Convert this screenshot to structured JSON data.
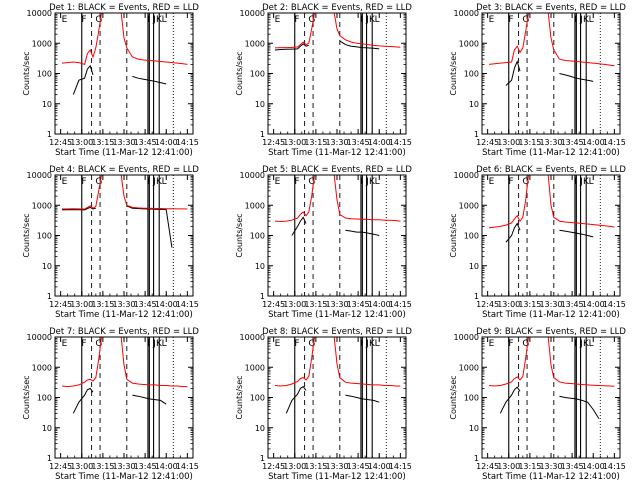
{
  "figure": {
    "xlabel": "Start Time (11-Mar-12 12:41:00)",
    "ylabel": "Counts/sec",
    "xticks": [
      "12:45",
      "13:00",
      "13:15",
      "13:30",
      "13:45",
      "14:00",
      "14:15"
    ],
    "yticks": [
      "1",
      "10",
      "100",
      "1000",
      "10000"
    ],
    "series_colors": {
      "events": "#000000",
      "lld": "#ff0000"
    }
  },
  "chart_data": [
    {
      "type": "line",
      "title": "Det 1: BLACK = Events, RED = LLD",
      "det": 1,
      "x": [
        "12:46",
        "12:50",
        "12:54",
        "12:58",
        "13:02",
        "13:04",
        "13:06",
        "13:08",
        "13:10",
        "13:12",
        "13:14",
        "13:16",
        "13:20",
        "13:24",
        "13:28",
        "13:30",
        "13:32",
        "13:36",
        "13:40",
        "13:44",
        "13:48",
        "13:52",
        "13:56",
        "14:00",
        "14:04",
        "14:08",
        "14:12",
        "14:15"
      ],
      "ylim": [
        1,
        10000
      ],
      "ylog": true,
      "series": [
        {
          "key": "lld",
          "values": [
            220,
            230,
            240,
            230,
            200,
            450,
            600,
            350,
            700,
            2500,
            10000,
            10000,
            10000,
            10000,
            10000,
            1500,
            700,
            350,
            300,
            280,
            270,
            260,
            250,
            240,
            230,
            220,
            210,
            200
          ]
        },
        {
          "key": "events",
          "values": [
            null,
            null,
            20,
            60,
            70,
            140,
            180,
            90,
            null,
            null,
            null,
            null,
            null,
            null,
            null,
            null,
            null,
            80,
            70,
            65,
            60,
            55,
            50,
            45,
            null,
            null,
            null,
            null
          ]
        }
      ],
      "labels": [
        "E",
        "F",
        "G",
        "I",
        "J",
        "K",
        "L"
      ]
    },
    {
      "type": "line",
      "title": "Det 2: BLACK = Events, RED = LLD",
      "det": 2,
      "x": [
        "12:46",
        "12:50",
        "12:54",
        "12:58",
        "13:02",
        "13:04",
        "13:06",
        "13:08",
        "13:10",
        "13:12",
        "13:14",
        "13:16",
        "13:20",
        "13:24",
        "13:28",
        "13:30",
        "13:32",
        "13:36",
        "13:40",
        "13:44",
        "13:48",
        "13:52",
        "13:56",
        "14:00",
        "14:04",
        "14:08",
        "14:12",
        "14:15"
      ],
      "ylim": [
        1,
        10000
      ],
      "ylog": true,
      "series": [
        {
          "key": "lld",
          "values": [
            700,
            720,
            720,
            730,
            750,
            900,
            1100,
            900,
            1000,
            3000,
            10000,
            10000,
            10000,
            10000,
            10000,
            3000,
            1800,
            1300,
            1100,
            1000,
            950,
            900,
            850,
            820,
            800,
            780,
            760,
            740
          ]
        },
        {
          "key": "events",
          "values": [
            600,
            620,
            630,
            640,
            650,
            800,
            950,
            800,
            850,
            null,
            null,
            null,
            null,
            null,
            null,
            null,
            1200,
            900,
            800,
            760,
            720,
            700,
            680,
            650,
            null,
            null,
            null,
            null
          ]
        }
      ],
      "labels": [
        "E",
        "F",
        "G",
        "I",
        "J",
        "K",
        "L"
      ]
    },
    {
      "type": "line",
      "title": "Det 3: BLACK = Events, RED = LLD",
      "det": 3,
      "x": [
        "12:46",
        "12:50",
        "12:54",
        "12:58",
        "13:02",
        "13:04",
        "13:06",
        "13:08",
        "13:10",
        "13:12",
        "13:14",
        "13:16",
        "13:20",
        "13:24",
        "13:28",
        "13:30",
        "13:32",
        "13:36",
        "13:40",
        "13:44",
        "13:48",
        "13:52",
        "13:56",
        "14:00",
        "14:04",
        "14:08",
        "14:12",
        "14:15"
      ],
      "ylim": [
        1,
        10000
      ],
      "ylog": true,
      "series": [
        {
          "key": "lld",
          "values": [
            200,
            210,
            220,
            230,
            240,
            600,
            800,
            500,
            700,
            2500,
            10000,
            10000,
            10000,
            10000,
            10000,
            1500,
            600,
            300,
            270,
            260,
            250,
            240,
            230,
            220,
            210,
            200,
            190,
            180
          ]
        },
        {
          "key": "events",
          "values": [
            null,
            null,
            null,
            40,
            60,
            150,
            250,
            120,
            null,
            null,
            null,
            null,
            null,
            null,
            null,
            null,
            null,
            100,
            90,
            80,
            70,
            65,
            60,
            55,
            null,
            null,
            null,
            null
          ]
        }
      ],
      "labels": [
        "E",
        "F",
        "G",
        "I",
        "J",
        "K",
        "L"
      ]
    },
    {
      "type": "line",
      "title": "Det 4: BLACK = Events, RED = LLD",
      "det": 4,
      "x": [
        "12:46",
        "12:50",
        "12:54",
        "12:58",
        "13:02",
        "13:04",
        "13:06",
        "13:08",
        "13:10",
        "13:12",
        "13:14",
        "13:16",
        "13:20",
        "13:24",
        "13:28",
        "13:30",
        "13:32",
        "13:36",
        "13:40",
        "13:44",
        "13:48",
        "13:52",
        "13:56",
        "14:00",
        "14:04",
        "14:08",
        "14:12",
        "14:15"
      ],
      "ylim": [
        1,
        10000
      ],
      "ylog": true,
      "series": [
        {
          "key": "lld",
          "values": [
            750,
            760,
            770,
            760,
            750,
            850,
            950,
            800,
            900,
            3000,
            10000,
            10000,
            10000,
            10000,
            10000,
            2000,
            1000,
            850,
            820,
            800,
            790,
            780,
            780,
            770,
            770,
            760,
            760,
            750
          ]
        },
        {
          "key": "events",
          "values": [
            700,
            710,
            720,
            710,
            700,
            780,
            850,
            750,
            800,
            null,
            null,
            null,
            null,
            null,
            null,
            null,
            950,
            800,
            780,
            760,
            750,
            740,
            730,
            720,
            40,
            null,
            null,
            null
          ]
        }
      ],
      "labels": [
        "E",
        "F",
        "G",
        "I",
        "J",
        "K",
        "L"
      ]
    },
    {
      "type": "line",
      "title": "Det 5: BLACK = Events, RED = LLD",
      "det": 5,
      "x": [
        "12:46",
        "12:50",
        "12:54",
        "12:58",
        "13:02",
        "13:04",
        "13:06",
        "13:08",
        "13:10",
        "13:12",
        "13:14",
        "13:16",
        "13:20",
        "13:24",
        "13:28",
        "13:30",
        "13:32",
        "13:36",
        "13:40",
        "13:44",
        "13:48",
        "13:52",
        "13:56",
        "14:00",
        "14:04",
        "14:08",
        "14:12",
        "14:15"
      ],
      "ylim": [
        1,
        10000
      ],
      "ylog": true,
      "series": [
        {
          "key": "lld",
          "values": [
            300,
            290,
            300,
            320,
            380,
            500,
            600,
            450,
            600,
            2000,
            10000,
            10000,
            10000,
            10000,
            10000,
            1500,
            500,
            380,
            360,
            350,
            340,
            340,
            330,
            330,
            320,
            320,
            310,
            300
          ]
        },
        {
          "key": "events",
          "values": [
            null,
            null,
            null,
            100,
            200,
            300,
            400,
            250,
            null,
            null,
            null,
            null,
            null,
            null,
            null,
            null,
            null,
            150,
            140,
            130,
            130,
            120,
            110,
            100,
            null,
            null,
            null,
            null
          ]
        }
      ],
      "labels": [
        "E",
        "F",
        "G",
        "I",
        "J",
        "K",
        "L"
      ]
    },
    {
      "type": "line",
      "title": "Det 6: BLACK = Events, RED = LLD",
      "det": 6,
      "x": [
        "12:46",
        "12:50",
        "12:54",
        "12:58",
        "13:02",
        "13:04",
        "13:06",
        "13:08",
        "13:10",
        "13:12",
        "13:14",
        "13:16",
        "13:20",
        "13:24",
        "13:28",
        "13:30",
        "13:32",
        "13:36",
        "13:40",
        "13:44",
        "13:48",
        "13:52",
        "13:56",
        "14:00",
        "14:04",
        "14:08",
        "14:12",
        "14:15"
      ],
      "ylim": [
        1,
        10000
      ],
      "ylog": true,
      "series": [
        {
          "key": "lld",
          "values": [
            180,
            190,
            200,
            220,
            260,
            350,
            450,
            300,
            400,
            1500,
            10000,
            10000,
            10000,
            10000,
            10000,
            1000,
            400,
            300,
            280,
            270,
            260,
            250,
            240,
            230,
            220,
            210,
            200,
            190
          ]
        },
        {
          "key": "events",
          "values": [
            null,
            null,
            null,
            60,
            100,
            180,
            250,
            150,
            null,
            null,
            null,
            null,
            null,
            null,
            null,
            null,
            null,
            150,
            140,
            130,
            120,
            110,
            100,
            90,
            null,
            null,
            null,
            null
          ]
        }
      ],
      "labels": [
        "E",
        "F",
        "G",
        "I",
        "J",
        "K",
        "L"
      ]
    },
    {
      "type": "line",
      "title": "Det 7: BLACK = Events, RED = LLD",
      "det": 7,
      "x": [
        "12:46",
        "12:50",
        "12:54",
        "12:58",
        "13:02",
        "13:04",
        "13:06",
        "13:08",
        "13:10",
        "13:12",
        "13:14",
        "13:16",
        "13:20",
        "13:24",
        "13:28",
        "13:30",
        "13:32",
        "13:36",
        "13:40",
        "13:44",
        "13:48",
        "13:52",
        "13:56",
        "14:00",
        "14:04",
        "14:08",
        "14:12",
        "14:15"
      ],
      "ylim": [
        1,
        10000
      ],
      "ylog": true,
      "series": [
        {
          "key": "lld",
          "values": [
            240,
            230,
            240,
            260,
            320,
            380,
            400,
            350,
            450,
            1800,
            10000,
            10000,
            10000,
            10000,
            10000,
            1200,
            400,
            300,
            280,
            270,
            260,
            260,
            250,
            250,
            240,
            240,
            230,
            230
          ]
        },
        {
          "key": "events",
          "values": [
            null,
            null,
            30,
            70,
            120,
            180,
            200,
            150,
            null,
            null,
            null,
            null,
            null,
            null,
            null,
            null,
            null,
            120,
            110,
            100,
            90,
            85,
            80,
            60,
            null,
            null,
            null,
            null
          ]
        }
      ],
      "labels": [
        "E",
        "F",
        "G",
        "I",
        "J",
        "K",
        "L"
      ]
    },
    {
      "type": "line",
      "title": "Det 8: BLACK = Events, RED = LLD",
      "det": 8,
      "x": [
        "12:46",
        "12:50",
        "12:54",
        "12:58",
        "13:02",
        "13:04",
        "13:06",
        "13:08",
        "13:10",
        "13:12",
        "13:14",
        "13:16",
        "13:20",
        "13:24",
        "13:28",
        "13:30",
        "13:32",
        "13:36",
        "13:40",
        "13:44",
        "13:48",
        "13:52",
        "13:56",
        "14:00",
        "14:04",
        "14:08",
        "14:12",
        "14:15"
      ],
      "ylim": [
        1,
        10000
      ],
      "ylog": true,
      "series": [
        {
          "key": "lld",
          "values": [
            250,
            240,
            250,
            280,
            340,
            420,
            460,
            380,
            500,
            2000,
            10000,
            10000,
            10000,
            10000,
            10000,
            1300,
            450,
            320,
            300,
            290,
            280,
            270,
            260,
            260,
            250,
            250,
            240,
            240
          ]
        },
        {
          "key": "events",
          "values": [
            null,
            null,
            30,
            80,
            130,
            200,
            230,
            170,
            null,
            null,
            null,
            null,
            null,
            null,
            null,
            null,
            null,
            120,
            110,
            100,
            90,
            85,
            80,
            70,
            null,
            null,
            null,
            null
          ]
        }
      ],
      "labels": [
        "E",
        "F",
        "G",
        "I",
        "J",
        "K",
        "L"
      ]
    },
    {
      "type": "line",
      "title": "Det 9: BLACK = Events, RED = LLD",
      "det": 9,
      "x": [
        "12:46",
        "12:50",
        "12:54",
        "12:58",
        "13:02",
        "13:04",
        "13:06",
        "13:08",
        "13:10",
        "13:12",
        "13:14",
        "13:16",
        "13:20",
        "13:24",
        "13:28",
        "13:30",
        "13:32",
        "13:36",
        "13:40",
        "13:44",
        "13:48",
        "13:52",
        "13:56",
        "14:00",
        "14:04",
        "14:08",
        "14:12",
        "14:15"
      ],
      "ylim": [
        1,
        10000
      ],
      "ylog": true,
      "series": [
        {
          "key": "lld",
          "values": [
            250,
            240,
            250,
            280,
            330,
            420,
            480,
            380,
            500,
            2000,
            10000,
            10000,
            10000,
            10000,
            10000,
            1200,
            450,
            330,
            300,
            290,
            280,
            270,
            260,
            255,
            250,
            245,
            240,
            235
          ]
        },
        {
          "key": "events",
          "values": [
            null,
            null,
            30,
            70,
            120,
            180,
            220,
            160,
            null,
            null,
            null,
            null,
            null,
            null,
            null,
            null,
            null,
            110,
            100,
            95,
            90,
            80,
            70,
            40,
            20,
            null,
            null,
            null
          ]
        }
      ],
      "labels": [
        "E",
        "F",
        "G",
        "I",
        "J",
        "K",
        "L"
      ]
    }
  ]
}
